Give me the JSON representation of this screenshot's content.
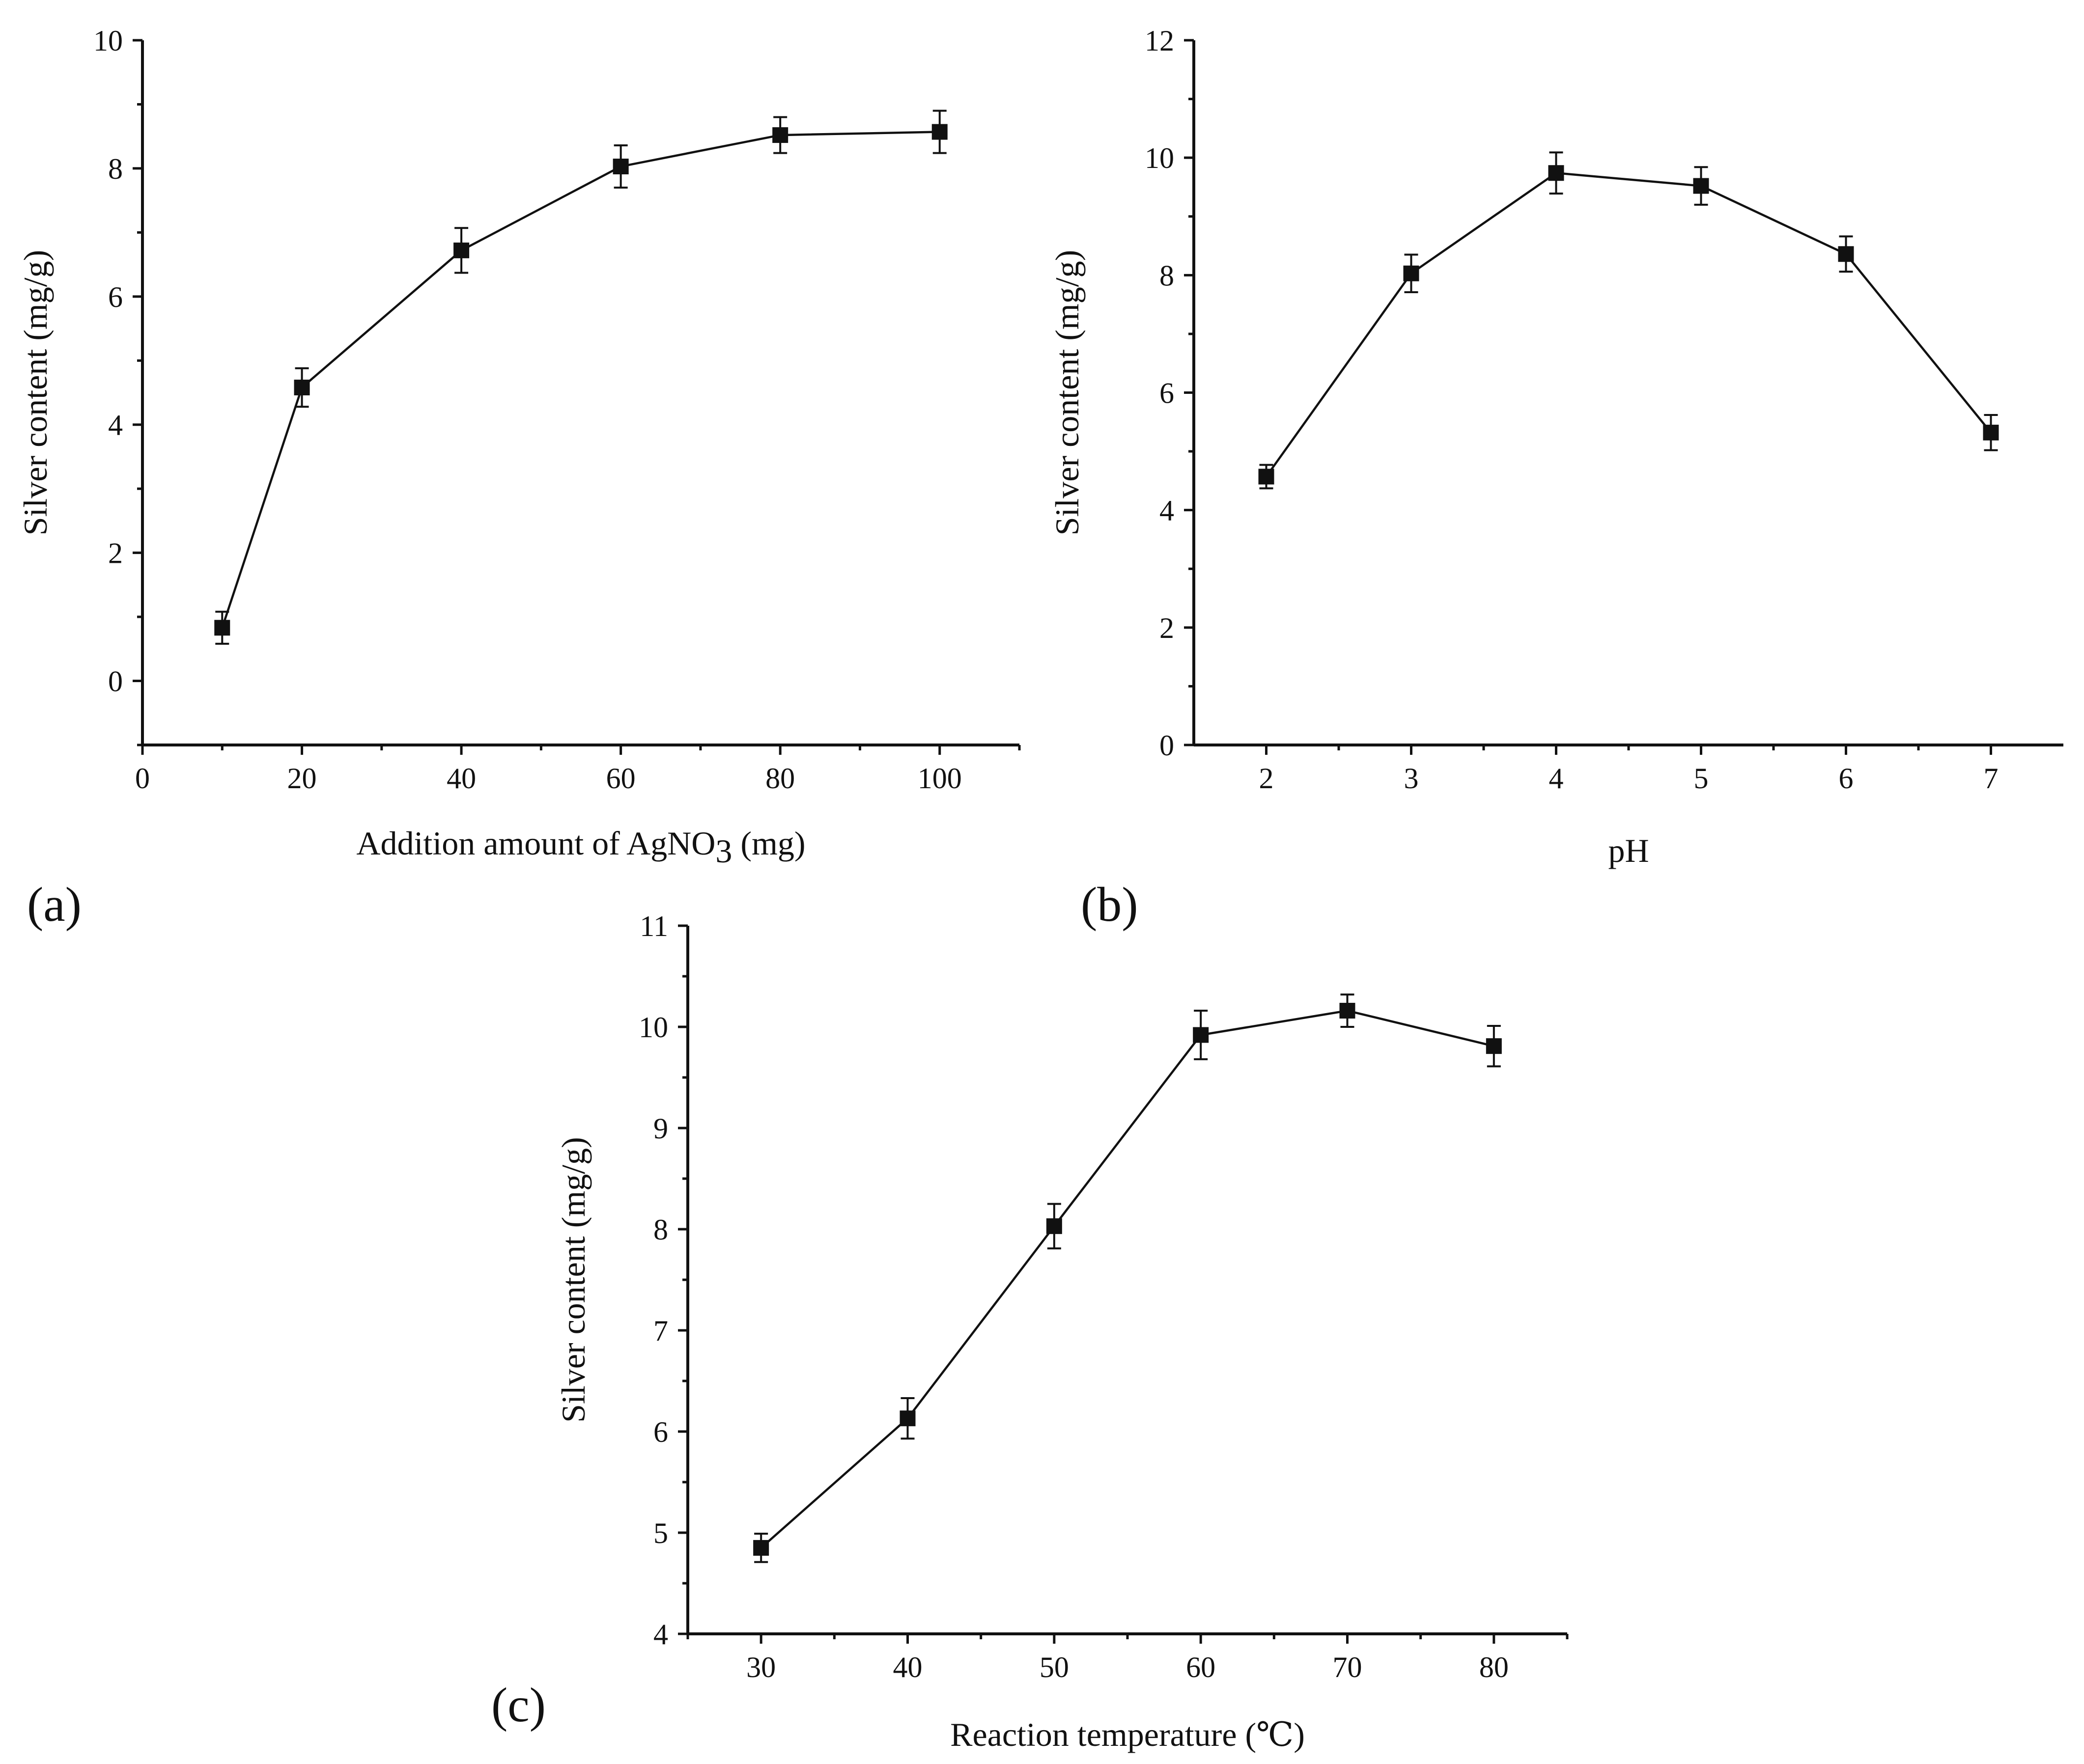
{
  "chart_data": [
    {
      "panel": "(a)",
      "type": "line",
      "xlabel": "Addition amount of AgNO",
      "xlabel_sub": "3",
      "xlabel_tail": " (mg)",
      "ylabel": "Silver content (mg/g)",
      "xlim": [
        0,
        110
      ],
      "ylim": [
        -1,
        10
      ],
      "xticks": [
        0,
        20,
        40,
        60,
        80,
        100
      ],
      "xminor": [
        10,
        30,
        50,
        70,
        90,
        110
      ],
      "yticks": [
        0,
        2,
        4,
        6,
        8,
        10
      ],
      "yminor": [
        -1,
        1,
        3,
        5,
        7,
        9
      ],
      "x": [
        10,
        20,
        40,
        60,
        80,
        100
      ],
      "y": [
        0.83,
        4.58,
        6.72,
        8.03,
        8.52,
        8.57
      ],
      "err": [
        0.25,
        0.3,
        0.35,
        0.33,
        0.28,
        0.33
      ]
    },
    {
      "panel": "(b)",
      "type": "line",
      "xlabel": "pH",
      "ylabel": "Silver content (mg/g)",
      "xlim": [
        1.5,
        7.5
      ],
      "ylim": [
        0,
        12
      ],
      "xticks": [
        2,
        3,
        4,
        5,
        6,
        7
      ],
      "xminor": [
        2.5,
        3.5,
        4.5,
        5.5,
        6.5
      ],
      "yticks": [
        0,
        2,
        4,
        6,
        8,
        10,
        12
      ],
      "yminor": [
        1,
        3,
        5,
        7,
        9,
        11
      ],
      "x": [
        2,
        3,
        4,
        5,
        6,
        7
      ],
      "y": [
        4.57,
        8.03,
        9.74,
        9.52,
        8.36,
        5.32
      ],
      "err": [
        0.2,
        0.32,
        0.35,
        0.32,
        0.3,
        0.3
      ]
    },
    {
      "panel": "(c)",
      "type": "line",
      "xlabel": "Reaction temperature (℃)",
      "ylabel": "Silver content (mg/g)",
      "xlim": [
        25,
        85
      ],
      "ylim": [
        4,
        11
      ],
      "xticks": [
        30,
        40,
        50,
        60,
        70,
        80
      ],
      "xminor": [
        25,
        35,
        45,
        55,
        65,
        75,
        85
      ],
      "yticks": [
        4,
        5,
        6,
        7,
        8,
        9,
        10,
        11
      ],
      "yminor": [
        4.5,
        5.5,
        6.5,
        7.5,
        8.5,
        9.5,
        10.5
      ],
      "x": [
        30,
        40,
        50,
        60,
        70,
        80
      ],
      "y": [
        4.85,
        6.13,
        8.03,
        9.92,
        10.16,
        9.81
      ],
      "err": [
        0.14,
        0.2,
        0.22,
        0.24,
        0.16,
        0.2
      ]
    }
  ]
}
